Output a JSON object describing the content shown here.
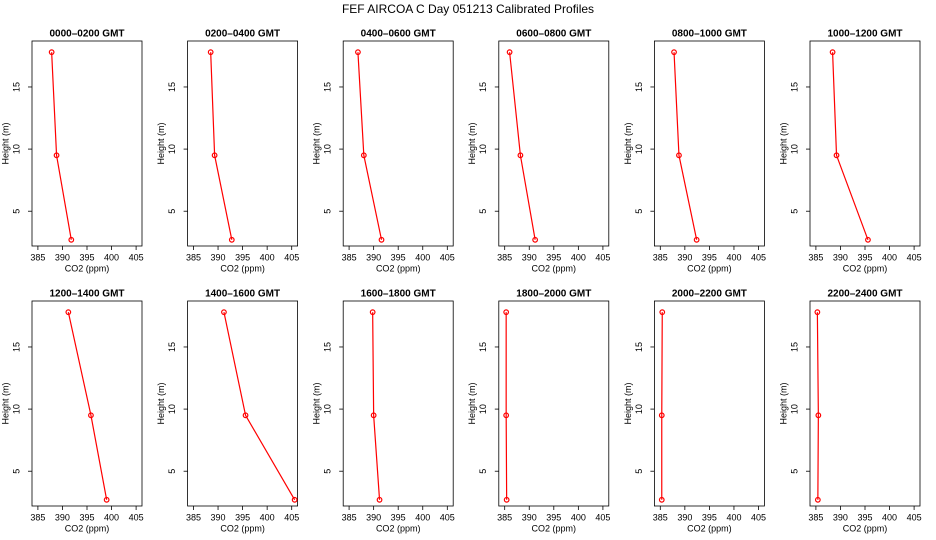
{
  "title": "FEF AIRCOA C  Day 051213  Calibrated Profiles",
  "chart_data": [
    {
      "type": "line",
      "title": "0000–0200 GMT",
      "xlabel": "CO2 (ppm)",
      "ylabel": "Height (m)",
      "color": "#ff0000",
      "x": [
        387.8,
        388.8,
        391.8
      ],
      "values": [
        17.8,
        9.5,
        2.7
      ],
      "xlim": [
        383.8,
        406.2
      ],
      "ylim": [
        2.2,
        18.7
      ],
      "xticks": [
        385,
        390,
        395,
        400,
        405
      ],
      "yticks": [
        5,
        10,
        15
      ]
    },
    {
      "type": "line",
      "title": "0200–0400 GMT",
      "xlabel": "CO2 (ppm)",
      "ylabel": "Height (m)",
      "color": "#ff0000",
      "x": [
        388.5,
        389.3,
        392.8
      ],
      "values": [
        17.8,
        9.5,
        2.7
      ],
      "xlim": [
        383.8,
        406.2
      ],
      "ylim": [
        2.2,
        18.7
      ],
      "xticks": [
        385,
        390,
        395,
        400,
        405
      ],
      "yticks": [
        5,
        10,
        15
      ]
    },
    {
      "type": "line",
      "title": "0400–0600 GMT",
      "xlabel": "CO2 (ppm)",
      "ylabel": "Height (m)",
      "color": "#ff0000",
      "x": [
        386.8,
        388.0,
        391.6
      ],
      "values": [
        17.8,
        9.5,
        2.7
      ],
      "xlim": [
        383.8,
        406.2
      ],
      "ylim": [
        2.2,
        18.7
      ],
      "xticks": [
        385,
        390,
        395,
        400,
        405
      ],
      "yticks": [
        5,
        10,
        15
      ]
    },
    {
      "type": "line",
      "title": "0600–0800 GMT",
      "xlabel": "CO2 (ppm)",
      "ylabel": "Height (m)",
      "color": "#ff0000",
      "x": [
        386.0,
        388.2,
        391.2
      ],
      "values": [
        17.8,
        9.5,
        2.7
      ],
      "xlim": [
        383.8,
        406.2
      ],
      "ylim": [
        2.2,
        18.7
      ],
      "xticks": [
        385,
        390,
        395,
        400,
        405
      ],
      "yticks": [
        5,
        10,
        15
      ]
    },
    {
      "type": "line",
      "title": "0800–1000 GMT",
      "xlabel": "CO2 (ppm)",
      "ylabel": "Height (m)",
      "color": "#ff0000",
      "x": [
        387.8,
        388.8,
        392.4
      ],
      "values": [
        17.8,
        9.5,
        2.7
      ],
      "xlim": [
        383.8,
        406.2
      ],
      "ylim": [
        2.2,
        18.7
      ],
      "xticks": [
        385,
        390,
        395,
        400,
        405
      ],
      "yticks": [
        5,
        10,
        15
      ]
    },
    {
      "type": "line",
      "title": "1000–1200 GMT",
      "xlabel": "CO2 (ppm)",
      "ylabel": "Height (m)",
      "color": "#ff0000",
      "x": [
        388.4,
        389.2,
        395.6
      ],
      "values": [
        17.8,
        9.5,
        2.7
      ],
      "xlim": [
        383.8,
        406.2
      ],
      "ylim": [
        2.2,
        18.7
      ],
      "xticks": [
        385,
        390,
        395,
        400,
        405
      ],
      "yticks": [
        5,
        10,
        15
      ]
    },
    {
      "type": "line",
      "title": "1200–1400 GMT",
      "xlabel": "CO2 (ppm)",
      "ylabel": "Height (m)",
      "color": "#ff0000",
      "x": [
        391.2,
        395.8,
        399.0
      ],
      "values": [
        17.8,
        9.5,
        2.7
      ],
      "xlim": [
        383.8,
        406.2
      ],
      "ylim": [
        2.2,
        18.7
      ],
      "xticks": [
        385,
        390,
        395,
        400,
        405
      ],
      "yticks": [
        5,
        10,
        15
      ]
    },
    {
      "type": "line",
      "title": "1400–1600 GMT",
      "xlabel": "CO2 (ppm)",
      "ylabel": "Height (m)",
      "color": "#ff0000",
      "x": [
        391.2,
        395.6,
        405.6
      ],
      "values": [
        17.8,
        9.5,
        2.7
      ],
      "xlim": [
        383.8,
        406.2
      ],
      "ylim": [
        2.2,
        18.7
      ],
      "xticks": [
        385,
        390,
        395,
        400,
        405
      ],
      "yticks": [
        5,
        10,
        15
      ]
    },
    {
      "type": "line",
      "title": "1600–1800 GMT",
      "xlabel": "CO2 (ppm)",
      "ylabel": "Height (m)",
      "color": "#ff0000",
      "x": [
        389.8,
        390.0,
        391.2
      ],
      "values": [
        17.8,
        9.5,
        2.7
      ],
      "xlim": [
        383.8,
        406.2
      ],
      "ylim": [
        2.2,
        18.7
      ],
      "xticks": [
        385,
        390,
        395,
        400,
        405
      ],
      "yticks": [
        5,
        10,
        15
      ]
    },
    {
      "type": "line",
      "title": "1800–2000 GMT",
      "xlabel": "CO2 (ppm)",
      "ylabel": "Height (m)",
      "color": "#ff0000",
      "x": [
        385.3,
        385.3,
        385.4
      ],
      "values": [
        17.8,
        9.5,
        2.7
      ],
      "xlim": [
        383.8,
        406.2
      ],
      "ylim": [
        2.2,
        18.7
      ],
      "xticks": [
        385,
        390,
        395,
        400,
        405
      ],
      "yticks": [
        5,
        10,
        15
      ]
    },
    {
      "type": "line",
      "title": "2000–2200 GMT",
      "xlabel": "CO2 (ppm)",
      "ylabel": "Height (m)",
      "color": "#ff0000",
      "x": [
        385.4,
        385.3,
        385.3
      ],
      "values": [
        17.8,
        9.5,
        2.7
      ],
      "xlim": [
        383.8,
        406.2
      ],
      "ylim": [
        2.2,
        18.7
      ],
      "xticks": [
        385,
        390,
        395,
        400,
        405
      ],
      "yticks": [
        5,
        10,
        15
      ]
    },
    {
      "type": "line",
      "title": "2200–2400 GMT",
      "xlabel": "CO2 (ppm)",
      "ylabel": "Height (m)",
      "color": "#ff0000",
      "x": [
        385.3,
        385.5,
        385.4
      ],
      "values": [
        17.8,
        9.5,
        2.7
      ],
      "xlim": [
        383.8,
        406.2
      ],
      "ylim": [
        2.2,
        18.7
      ],
      "xticks": [
        385,
        390,
        395,
        400,
        405
      ],
      "yticks": [
        5,
        10,
        15
      ]
    }
  ]
}
